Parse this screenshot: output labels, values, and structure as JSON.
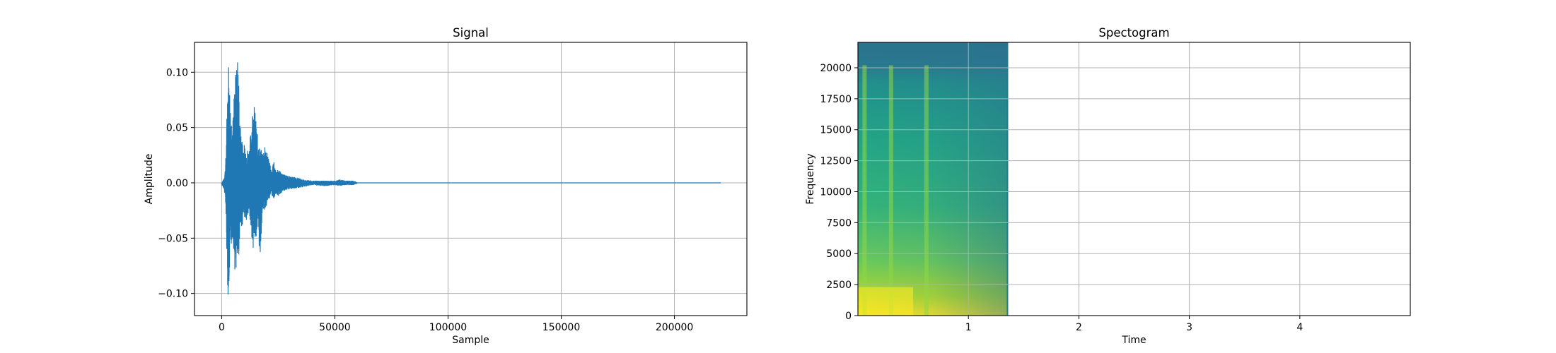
{
  "chart_data": [
    {
      "type": "line",
      "title": "Signal",
      "xlabel": "Sample",
      "ylabel": "Amplitude",
      "xlim": [
        -12000,
        232000
      ],
      "ylim": [
        -0.12,
        0.127
      ],
      "grid": true,
      "x_ticks": [
        0,
        50000,
        100000,
        150000,
        200000
      ],
      "x_tick_labels": [
        "0",
        "50000",
        "100000",
        "150000",
        "200000"
      ],
      "y_ticks": [
        -0.1,
        -0.05,
        0.0,
        0.05,
        0.1
      ],
      "y_tick_labels": [
        "−0.10",
        "−0.05",
        "0.00",
        "0.05",
        "0.10"
      ],
      "series": [
        {
          "color": "#1f77b4",
          "n_samples": 220500,
          "envelope": {
            "x": [
              0,
              500,
              1000,
              1500,
              2000,
              2500,
              3000,
              3500,
              4000,
              5000,
              6000,
              7000,
              7500,
              8000,
              9000,
              10000,
              11000,
              12000,
              13000,
              14000,
              15000,
              16000,
              17000,
              18000,
              19000,
              20000,
              21000,
              22000,
              23000,
              24000,
              25000,
              27000,
              30000,
              33000,
              36000,
              40000,
              45000,
              50000,
              52000,
              55000,
              58000,
              59500,
              60000,
              220500
            ],
            "upper": [
              0.0,
              0.002,
              0.004,
              0.012,
              0.03,
              0.085,
              0.115,
              0.09,
              0.065,
              0.06,
              0.098,
              0.117,
              0.1,
              0.055,
              0.04,
              0.035,
              0.032,
              0.03,
              0.05,
              0.078,
              0.06,
              0.04,
              0.03,
              0.03,
              0.033,
              0.03,
              0.02,
              0.012,
              0.02,
              0.01,
              0.012,
              0.008,
              0.006,
              0.005,
              0.003,
              0.002,
              0.002,
              0.002,
              0.003,
              0.002,
              0.002,
              0.001,
              0.0,
              0.0
            ],
            "lower": [
              -0.002,
              -0.004,
              -0.005,
              -0.012,
              -0.035,
              -0.09,
              -0.108,
              -0.085,
              -0.06,
              -0.05,
              -0.085,
              -0.075,
              -0.07,
              -0.045,
              -0.04,
              -0.03,
              -0.035,
              -0.028,
              -0.045,
              -0.06,
              -0.05,
              -0.045,
              -0.07,
              -0.025,
              -0.025,
              -0.02,
              -0.015,
              -0.01,
              -0.015,
              -0.01,
              -0.012,
              -0.008,
              -0.006,
              -0.005,
              -0.004,
              -0.002,
              -0.003,
              -0.002,
              -0.003,
              -0.002,
              -0.002,
              -0.001,
              0.0,
              0.0
            ]
          }
        }
      ]
    },
    {
      "type": "heatmap",
      "title": "Spectogram",
      "xlabel": "Time",
      "ylabel": "Frequency",
      "xlim": [
        0,
        5.0
      ],
      "ylim": [
        0,
        22050
      ],
      "grid": true,
      "data_xlim": [
        0,
        1.36
      ],
      "colormap": "viridis",
      "x_ticks": [
        1,
        2,
        3,
        4
      ],
      "x_tick_labels": [
        "1",
        "2",
        "3",
        "4"
      ],
      "y_ticks": [
        0,
        2500,
        5000,
        7500,
        10000,
        12500,
        15000,
        17500,
        20000
      ],
      "y_tick_labels": [
        "0",
        "2500",
        "5000",
        "7500",
        "10000",
        "12500",
        "15000",
        "17500",
        "20000"
      ],
      "colors": {
        "low": "#2a768e",
        "mid": "#22a784",
        "high": "#fde725"
      }
    }
  ]
}
